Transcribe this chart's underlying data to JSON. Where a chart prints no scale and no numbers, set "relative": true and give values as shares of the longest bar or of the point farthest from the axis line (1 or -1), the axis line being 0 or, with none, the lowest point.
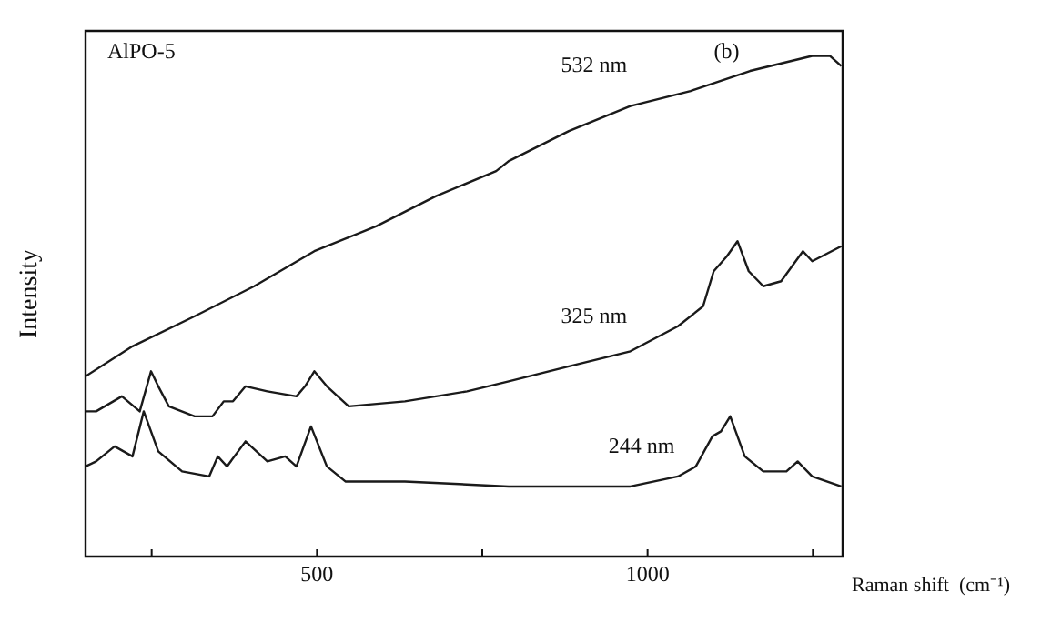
{
  "chart_data": {
    "type": "line",
    "relative": true,
    "xlabel": "Raman shift  (cm⁻¹)",
    "ylabel": "Intensity",
    "annotations": [
      "AlPO-5",
      "(b)"
    ],
    "xlim": [
      150,
      1295
    ],
    "xticks": [
      {
        "value": 250,
        "label": null
      },
      500,
      {
        "value": 750,
        "label": null
      },
      1000,
      {
        "value": 1250,
        "label": null
      }
    ],
    "grid": false,
    "legend": false,
    "marker": "none",
    "line_style": "solid",
    "series": [
      {
        "name": "532 nm",
        "color": "#1a1a1a",
        "x": [
          150,
          221,
          315,
          405,
          496,
          590,
          680,
          771,
          790,
          881,
          974,
          1065,
          1155,
          1249,
          1276,
          1293
        ],
        "values": [
          0.36,
          0.42,
          0.48,
          0.54,
          0.61,
          0.66,
          0.72,
          0.77,
          0.79,
          0.85,
          0.9,
          0.93,
          0.97,
          1.0,
          1.0,
          0.98
        ]
      },
      {
        "name": "325 nm",
        "color": "#1a1a1a",
        "x": [
          150,
          166,
          205,
          232,
          249,
          260,
          276,
          315,
          342,
          359,
          373,
          392,
          425,
          469,
          482,
          496,
          515,
          548,
          633,
          727,
          790,
          881,
          974,
          1046,
          1084,
          1100,
          1120,
          1136,
          1153,
          1175,
          1202,
          1235,
          1249,
          1293
        ],
        "values": [
          0.29,
          0.29,
          0.32,
          0.29,
          0.37,
          0.34,
          0.3,
          0.28,
          0.28,
          0.31,
          0.31,
          0.34,
          0.33,
          0.32,
          0.34,
          0.37,
          0.34,
          0.3,
          0.31,
          0.33,
          0.35,
          0.38,
          0.41,
          0.46,
          0.5,
          0.57,
          0.6,
          0.63,
          0.57,
          0.54,
          0.55,
          0.61,
          0.59,
          0.62
        ]
      },
      {
        "name": "244 nm",
        "color": "#1a1a1a",
        "x": [
          150,
          166,
          194,
          221,
          238,
          260,
          296,
          337,
          350,
          364,
          392,
          425,
          452,
          469,
          491,
          515,
          543,
          633,
          790,
          974,
          1046,
          1073,
          1098,
          1111,
          1125,
          1147,
          1175,
          1210,
          1227,
          1249,
          1293
        ],
        "values": [
          0.18,
          0.19,
          0.22,
          0.2,
          0.29,
          0.21,
          0.17,
          0.16,
          0.2,
          0.18,
          0.23,
          0.19,
          0.2,
          0.18,
          0.26,
          0.18,
          0.15,
          0.15,
          0.14,
          0.14,
          0.16,
          0.18,
          0.24,
          0.25,
          0.28,
          0.2,
          0.17,
          0.17,
          0.19,
          0.16,
          0.14
        ]
      }
    ]
  }
}
